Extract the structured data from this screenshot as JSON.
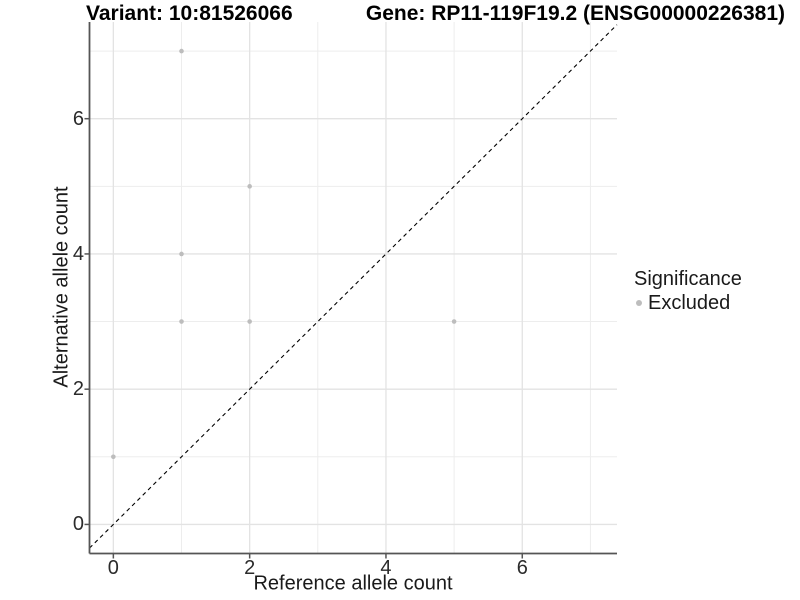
{
  "titles": {
    "variant": "Variant: 10:81526066",
    "gene": "Gene: RP11-119F19.2 (ENSG00000226381)"
  },
  "legend": {
    "title": "Significance",
    "position": "right",
    "items": [
      {
        "label": "Excluded",
        "color": "#bdbdbd",
        "marker": "dot-icon"
      }
    ]
  },
  "chart_data": {
    "type": "scatter",
    "titles": [
      "Variant: 10:81526066",
      "Gene: RP11-119F19.2 (ENSG00000226381)"
    ],
    "xlabel": "Reference allele count",
    "ylabel": "Alternative allele count",
    "xlim": [
      -0.35,
      7.39
    ],
    "ylim": [
      -0.43,
      7.43
    ],
    "x_ticks": [
      0,
      2,
      4,
      6
    ],
    "y_ticks": [
      0,
      2,
      4,
      6
    ],
    "x_gridlines_major": [
      0,
      2,
      4,
      6
    ],
    "x_gridlines_minor": [
      1,
      3,
      5,
      7
    ],
    "y_gridlines_major": [
      0,
      2,
      4,
      6
    ],
    "y_gridlines_minor": [
      1,
      3,
      5,
      7
    ],
    "grid": true,
    "legend_position": "right",
    "identity_line": {
      "show": true,
      "equation": "y = x",
      "style": "dashed",
      "color": "#000000"
    },
    "series": [
      {
        "name": "Excluded",
        "color": "#bdbdbd",
        "points": [
          {
            "x": 1,
            "y": 7
          },
          {
            "x": 2,
            "y": 5
          },
          {
            "x": 1,
            "y": 4
          },
          {
            "x": 1,
            "y": 3
          },
          {
            "x": 2,
            "y": 3
          },
          {
            "x": 5,
            "y": 3
          },
          {
            "x": 0,
            "y": 1
          }
        ]
      }
    ]
  },
  "colors": {
    "background": "#ffffff",
    "grid_major": "#e3e3e3",
    "grid_minor": "#ededed",
    "axis_line": "#555555",
    "tick_mark": "#555555",
    "tick_text": "#2b2b2b",
    "point": "#bdbdbd",
    "identity_line": "#000000"
  }
}
